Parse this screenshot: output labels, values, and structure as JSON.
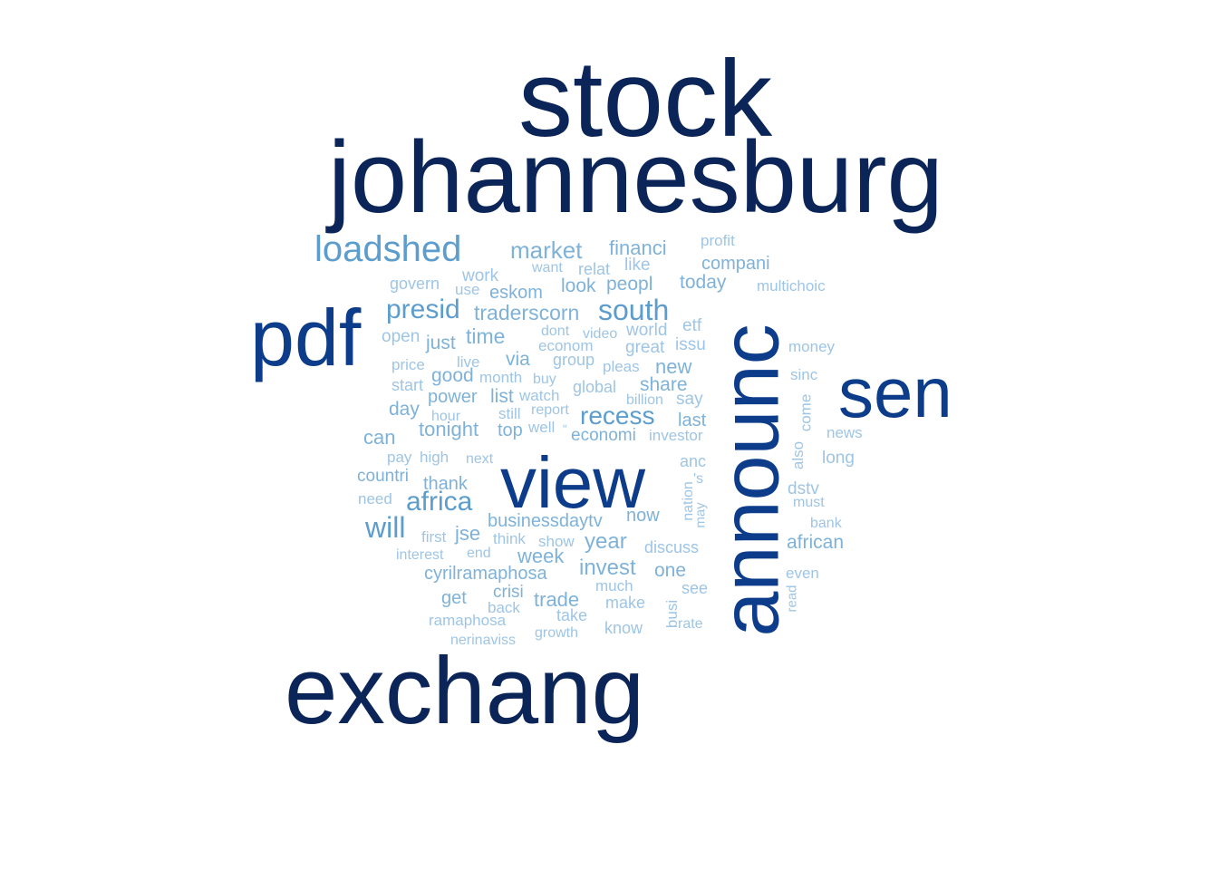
{
  "palette": {
    "t1": "#0b2559",
    "t2": "#0d3d8a",
    "t3": "#3d87c0",
    "t4": "#5d9dcd",
    "t5": "#7fb2d9",
    "t6": "#9ec5e5"
  },
  "words": [
    {
      "text": "stock",
      "tier": "t1"
    },
    {
      "text": "johannesburg",
      "tier": "t1"
    },
    {
      "text": "exchang",
      "tier": "t1"
    },
    {
      "text": "announc",
      "tier": "t2"
    },
    {
      "text": "view",
      "tier": "t2"
    },
    {
      "text": "pdf",
      "tier": "t2"
    },
    {
      "text": "sen",
      "tier": "t2"
    },
    {
      "text": "loadshed",
      "tier": "t4"
    },
    {
      "text": "market",
      "tier": "t5"
    },
    {
      "text": "financi",
      "tier": "t5"
    },
    {
      "text": "profit",
      "tier": "t6"
    },
    {
      "text": "want",
      "tier": "t6"
    },
    {
      "text": "relat",
      "tier": "t6"
    },
    {
      "text": "like",
      "tier": "t6"
    },
    {
      "text": "compani",
      "tier": "t5"
    },
    {
      "text": "govern",
      "tier": "t6"
    },
    {
      "text": "work",
      "tier": "t6"
    },
    {
      "text": "use",
      "tier": "t6"
    },
    {
      "text": "eskom",
      "tier": "t5"
    },
    {
      "text": "look",
      "tier": "t5"
    },
    {
      "text": "peopl",
      "tier": "t5"
    },
    {
      "text": "today",
      "tier": "t5"
    },
    {
      "text": "multichoic",
      "tier": "t6"
    },
    {
      "text": "presid",
      "tier": "t4"
    },
    {
      "text": "traderscorn",
      "tier": "t5"
    },
    {
      "text": "south",
      "tier": "t4"
    },
    {
      "text": "open",
      "tier": "t6"
    },
    {
      "text": "just",
      "tier": "t5"
    },
    {
      "text": "time",
      "tier": "t5"
    },
    {
      "text": "dont",
      "tier": "t6"
    },
    {
      "text": "video",
      "tier": "t6"
    },
    {
      "text": "world",
      "tier": "t6"
    },
    {
      "text": "etf",
      "tier": "t6"
    },
    {
      "text": "econom",
      "tier": "t6"
    },
    {
      "text": "great",
      "tier": "t6"
    },
    {
      "text": "issu",
      "tier": "t6"
    },
    {
      "text": "money",
      "tier": "t6"
    },
    {
      "text": "price",
      "tier": "t6"
    },
    {
      "text": "live",
      "tier": "t6"
    },
    {
      "text": "via",
      "tier": "t5"
    },
    {
      "text": "group",
      "tier": "t6"
    },
    {
      "text": "pleas",
      "tier": "t6"
    },
    {
      "text": "new",
      "tier": "t5"
    },
    {
      "text": "sinc",
      "tier": "t6"
    },
    {
      "text": "good",
      "tier": "t5"
    },
    {
      "text": "month",
      "tier": "t6"
    },
    {
      "text": "buy",
      "tier": "t6"
    },
    {
      "text": "start",
      "tier": "t6"
    },
    {
      "text": "global",
      "tier": "t6"
    },
    {
      "text": "share",
      "tier": "t5"
    },
    {
      "text": "power",
      "tier": "t5"
    },
    {
      "text": "list",
      "tier": "t5"
    },
    {
      "text": "watch",
      "tier": "t6"
    },
    {
      "text": "billion",
      "tier": "t6"
    },
    {
      "text": "say",
      "tier": "t6"
    },
    {
      "text": "come",
      "tier": "t6"
    },
    {
      "text": "day",
      "tier": "t5"
    },
    {
      "text": "still",
      "tier": "t6"
    },
    {
      "text": "report",
      "tier": "t6"
    },
    {
      "text": "recess",
      "tier": "t4"
    },
    {
      "text": "hour",
      "tier": "t6"
    },
    {
      "text": "last",
      "tier": "t5"
    },
    {
      "text": "tonight",
      "tier": "t5"
    },
    {
      "text": "top",
      "tier": "t5"
    },
    {
      "text": "well",
      "tier": "t6"
    },
    {
      "text": "“",
      "tier": "t6"
    },
    {
      "text": "economi",
      "tier": "t5"
    },
    {
      "text": "investor",
      "tier": "t6"
    },
    {
      "text": "news",
      "tier": "t6"
    },
    {
      "text": "can",
      "tier": "t5"
    },
    {
      "text": "pay",
      "tier": "t6"
    },
    {
      "text": "high",
      "tier": "t6"
    },
    {
      "text": "next",
      "tier": "t6"
    },
    {
      "text": "also",
      "tier": "t6"
    },
    {
      "text": "long",
      "tier": "t6"
    },
    {
      "text": "anc",
      "tier": "t6"
    },
    {
      "text": "countri",
      "tier": "t5"
    },
    {
      "text": "thank",
      "tier": "t5"
    },
    {
      "text": "'s",
      "tier": "t6"
    },
    {
      "text": "need",
      "tier": "t6"
    },
    {
      "text": "africa",
      "tier": "t4"
    },
    {
      "text": "nation",
      "tier": "t6"
    },
    {
      "text": "dstv",
      "tier": "t6"
    },
    {
      "text": "must",
      "tier": "t6"
    },
    {
      "text": "may",
      "tier": "t6"
    },
    {
      "text": "will",
      "tier": "t4"
    },
    {
      "text": "businessdaytv",
      "tier": "t5"
    },
    {
      "text": "now",
      "tier": "t5"
    },
    {
      "text": "bank",
      "tier": "t6"
    },
    {
      "text": "first",
      "tier": "t6"
    },
    {
      "text": "jse",
      "tier": "t5"
    },
    {
      "text": "think",
      "tier": "t6"
    },
    {
      "text": "show",
      "tier": "t6"
    },
    {
      "text": "year",
      "tier": "t5"
    },
    {
      "text": "discuss",
      "tier": "t6"
    },
    {
      "text": "african",
      "tier": "t5"
    },
    {
      "text": "interest",
      "tier": "t6"
    },
    {
      "text": "end",
      "tier": "t6"
    },
    {
      "text": "week",
      "tier": "t5"
    },
    {
      "text": "cyrilramaphosa",
      "tier": "t5"
    },
    {
      "text": "invest",
      "tier": "t5"
    },
    {
      "text": "one",
      "tier": "t5"
    },
    {
      "text": "even",
      "tier": "t6"
    },
    {
      "text": "much",
      "tier": "t6"
    },
    {
      "text": "get",
      "tier": "t5"
    },
    {
      "text": "crisi",
      "tier": "t5"
    },
    {
      "text": "see",
      "tier": "t6"
    },
    {
      "text": "read",
      "tier": "t6"
    },
    {
      "text": "back",
      "tier": "t6"
    },
    {
      "text": "trade",
      "tier": "t5"
    },
    {
      "text": "make",
      "tier": "t6"
    },
    {
      "text": "busi",
      "tier": "t6"
    },
    {
      "text": "ramaphosa",
      "tier": "t6"
    },
    {
      "text": "take",
      "tier": "t6"
    },
    {
      "text": "rate",
      "tier": "t6"
    },
    {
      "text": "know",
      "tier": "t6"
    },
    {
      "text": "growth",
      "tier": "t6"
    },
    {
      "text": "nerinaviss",
      "tier": "t6"
    }
  ]
}
